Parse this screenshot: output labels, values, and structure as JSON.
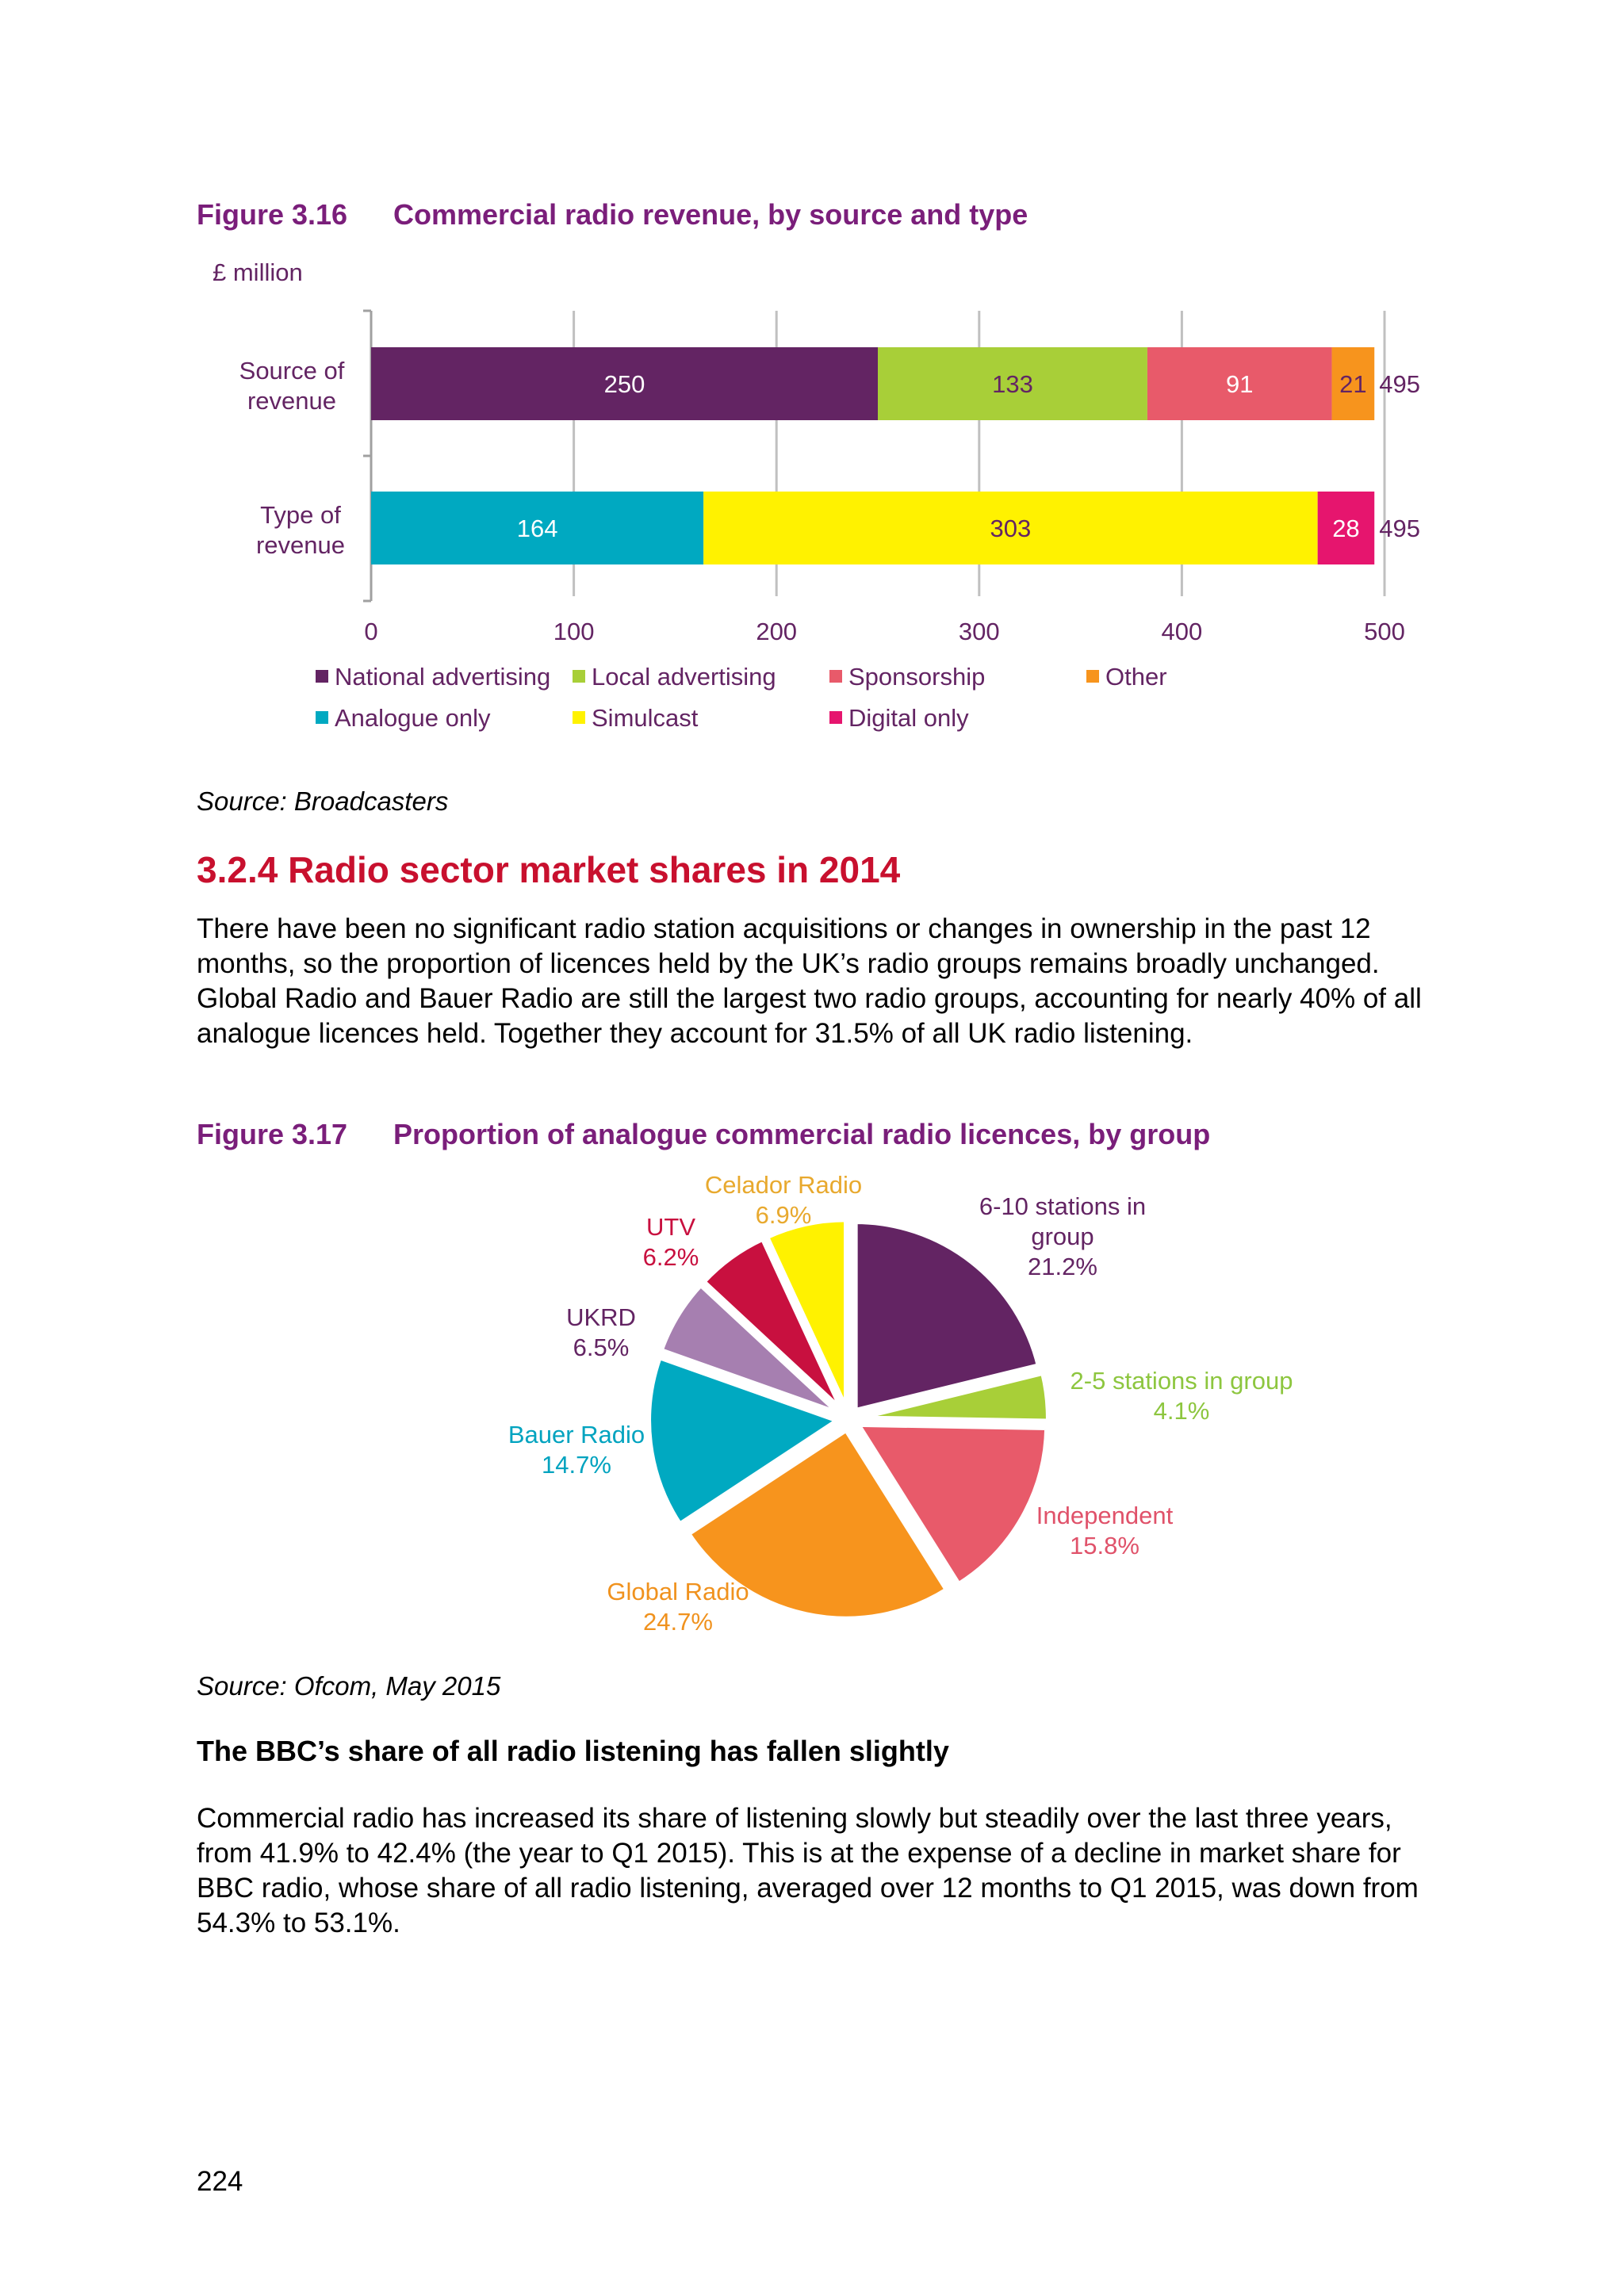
{
  "figure_316": {
    "number": "Figure 3.16",
    "title": "Commercial radio revenue, by source and type",
    "source": "Source: Broadcasters"
  },
  "section": {
    "heading": "3.2.4 Radio sector market shares in 2014",
    "paragraph": "There have been no significant radio station acquisitions or changes in ownership in the past 12 months, so the proportion of licences held by the UK’s radio groups remains broadly unchanged. Global Radio and Bauer Radio are still the largest two radio groups, accounting for nearly 40% of all analogue licences held. Together they account for 31.5% of all UK radio listening."
  },
  "figure_317": {
    "number": "Figure 3.17",
    "title": "Proportion of analogue commercial radio licences, by group",
    "source": "Source: Ofcom, May 2015"
  },
  "bbc": {
    "subheading": "The BBC’s share of all radio listening has fallen slightly",
    "paragraph": "Commercial radio has increased its share of listening slowly but steadily over the last three years, from 41.9% to 42.4% (the year to Q1 2015). This is at the expense of a decline in market share for BBC radio, whose share of all radio listening, averaged over 12 months to Q1 2015, was down from 54.3% to 53.1%."
  },
  "page_number": "224",
  "chart_data": [
    {
      "type": "bar",
      "orientation": "horizontal",
      "stacked": true,
      "ylabel": "£ million",
      "categories": [
        "Source of revenue",
        "Type of revenue"
      ],
      "xlim": [
        0,
        500
      ],
      "xticks": [
        0,
        100,
        200,
        300,
        400,
        500
      ],
      "grid": true,
      "totals": [
        495,
        495
      ],
      "series": [
        {
          "name": "National advertising",
          "color": "#632463",
          "label_color": "#ffffff",
          "values": [
            250,
            0
          ]
        },
        {
          "name": "Local advertising",
          "color": "#a8cf38",
          "label_color": "#632463",
          "values": [
            133,
            0
          ]
        },
        {
          "name": "Sponsorship",
          "color": "#e85a6a",
          "label_color": "#ffffff",
          "values": [
            91,
            0
          ]
        },
        {
          "name": "Other",
          "color": "#f7941d",
          "label_color": "#632463",
          "values": [
            21,
            0
          ]
        },
        {
          "name": "Analogue only",
          "color": "#00a9c1",
          "label_color": "#ffffff",
          "values": [
            0,
            164
          ]
        },
        {
          "name": "Simulcast",
          "color": "#fff200",
          "label_color": "#632463",
          "values": [
            0,
            303
          ]
        },
        {
          "name": "Digital only",
          "color": "#e6156e",
          "label_color": "#ffffff",
          "values": [
            0,
            28
          ]
        }
      ],
      "legend_rows": [
        [
          "National advertising",
          "Local advertising",
          "Sponsorship",
          "Other"
        ],
        [
          "Analogue only",
          "Simulcast",
          "Digital only"
        ]
      ],
      "legend_placement": "bottom"
    },
    {
      "type": "pie",
      "exploded": true,
      "slices": [
        {
          "label": "6-10 stations in group",
          "value": 21.2,
          "display": "21.2%",
          "color": "#632463",
          "label_color": "#632463"
        },
        {
          "label": "2-5 stations in group",
          "value": 4.1,
          "display": "4.1%",
          "color": "#a8cf38",
          "label_color": "#8dc63f"
        },
        {
          "label": "Independent",
          "value": 15.8,
          "display": "15.8%",
          "color": "#e85a6a",
          "label_color": "#e0526a"
        },
        {
          "label": "Global Radio",
          "value": 24.7,
          "display": "24.7%",
          "color": "#f7941d",
          "label_color": "#f0921e"
        },
        {
          "label": "Bauer Radio",
          "value": 14.7,
          "display": "14.7%",
          "color": "#00a9c1",
          "label_color": "#00a3bf"
        },
        {
          "label": "UKRD",
          "value": 6.5,
          "display": "6.5%",
          "color": "#a67fb0",
          "label_color": "#632463"
        },
        {
          "label": "UTV",
          "value": 6.2,
          "display": "6.2%",
          "color": "#c8103f",
          "label_color": "#c8103f"
        },
        {
          "label": "Celador Radio",
          "value": 6.9,
          "display": "6.9%",
          "color": "#fff200",
          "label_color": "#e8a92e"
        }
      ]
    }
  ]
}
